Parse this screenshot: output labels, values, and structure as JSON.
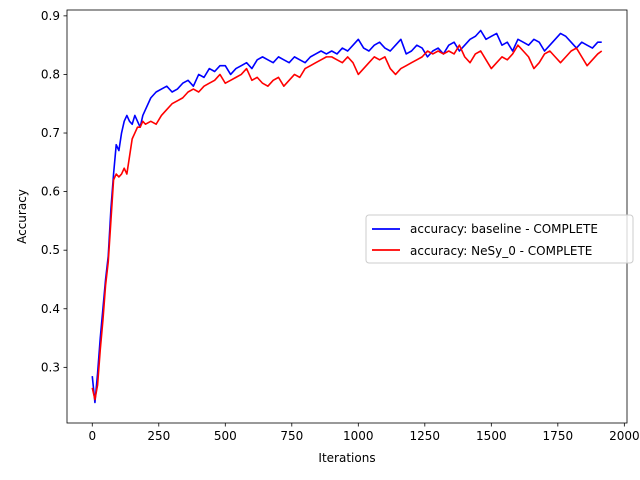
{
  "chart_data": {
    "type": "line",
    "title": "",
    "xlabel": "Iterations",
    "ylabel": "Accuracy",
    "xlim": [
      -95,
      2010
    ],
    "ylim": [
      0.205,
      0.91
    ],
    "xticks": [
      0,
      250,
      500,
      750,
      1000,
      1250,
      1500,
      1750,
      2000
    ],
    "yticks": [
      0.3,
      0.4,
      0.5,
      0.6,
      0.7,
      0.8,
      0.9
    ],
    "grid": false,
    "legend_position": "center-right",
    "series": [
      {
        "name": "accuracy: baseline - COMPLETE",
        "color": "#0000ff",
        "x": [
          0,
          10,
          20,
          30,
          40,
          50,
          60,
          70,
          80,
          90,
          100,
          110,
          120,
          130,
          140,
          150,
          160,
          170,
          180,
          190,
          200,
          220,
          240,
          260,
          280,
          300,
          320,
          340,
          360,
          380,
          400,
          420,
          440,
          460,
          480,
          500,
          520,
          540,
          560,
          580,
          600,
          620,
          640,
          660,
          680,
          700,
          720,
          740,
          760,
          780,
          800,
          820,
          840,
          860,
          880,
          900,
          920,
          940,
          960,
          980,
          1000,
          1020,
          1040,
          1060,
          1080,
          1100,
          1120,
          1140,
          1160,
          1180,
          1200,
          1220,
          1240,
          1260,
          1280,
          1300,
          1320,
          1340,
          1360,
          1380,
          1400,
          1420,
          1440,
          1460,
          1480,
          1500,
          1520,
          1540,
          1560,
          1580,
          1600,
          1620,
          1640,
          1660,
          1680,
          1700,
          1720,
          1740,
          1760,
          1780,
          1800,
          1820,
          1840,
          1860,
          1880,
          1900,
          1915
        ],
        "values": [
          0.285,
          0.24,
          0.29,
          0.35,
          0.4,
          0.45,
          0.49,
          0.57,
          0.63,
          0.68,
          0.67,
          0.7,
          0.72,
          0.73,
          0.72,
          0.715,
          0.73,
          0.72,
          0.71,
          0.73,
          0.74,
          0.76,
          0.77,
          0.775,
          0.78,
          0.77,
          0.775,
          0.785,
          0.79,
          0.78,
          0.8,
          0.795,
          0.81,
          0.805,
          0.815,
          0.815,
          0.8,
          0.81,
          0.815,
          0.82,
          0.81,
          0.825,
          0.83,
          0.825,
          0.82,
          0.83,
          0.825,
          0.82,
          0.83,
          0.825,
          0.82,
          0.83,
          0.835,
          0.84,
          0.835,
          0.84,
          0.835,
          0.845,
          0.84,
          0.85,
          0.86,
          0.845,
          0.84,
          0.85,
          0.855,
          0.845,
          0.84,
          0.85,
          0.86,
          0.835,
          0.84,
          0.85,
          0.845,
          0.83,
          0.84,
          0.845,
          0.835,
          0.85,
          0.855,
          0.84,
          0.85,
          0.86,
          0.865,
          0.875,
          0.86,
          0.865,
          0.87,
          0.85,
          0.855,
          0.84,
          0.86,
          0.855,
          0.85,
          0.86,
          0.855,
          0.84,
          0.85,
          0.86,
          0.87,
          0.865,
          0.855,
          0.845,
          0.855,
          0.85,
          0.845,
          0.855,
          0.855
        ]
      },
      {
        "name": "accuracy: NeSy_0 - COMPLETE",
        "color": "#ff0000",
        "x": [
          0,
          10,
          20,
          30,
          40,
          50,
          60,
          70,
          80,
          90,
          100,
          110,
          120,
          130,
          140,
          150,
          160,
          170,
          180,
          190,
          200,
          220,
          240,
          260,
          280,
          300,
          320,
          340,
          360,
          380,
          400,
          420,
          440,
          460,
          480,
          500,
          520,
          540,
          560,
          580,
          600,
          620,
          640,
          660,
          680,
          700,
          720,
          740,
          760,
          780,
          800,
          820,
          840,
          860,
          880,
          900,
          920,
          940,
          960,
          980,
          1000,
          1020,
          1040,
          1060,
          1080,
          1100,
          1120,
          1140,
          1160,
          1180,
          1200,
          1220,
          1240,
          1260,
          1280,
          1300,
          1320,
          1340,
          1360,
          1380,
          1400,
          1420,
          1440,
          1460,
          1480,
          1500,
          1520,
          1540,
          1560,
          1580,
          1600,
          1620,
          1640,
          1660,
          1680,
          1700,
          1720,
          1740,
          1760,
          1780,
          1800,
          1820,
          1840,
          1860,
          1880,
          1900,
          1915
        ],
        "values": [
          0.265,
          0.245,
          0.27,
          0.33,
          0.38,
          0.44,
          0.48,
          0.55,
          0.62,
          0.63,
          0.625,
          0.63,
          0.64,
          0.63,
          0.66,
          0.69,
          0.7,
          0.71,
          0.71,
          0.72,
          0.715,
          0.72,
          0.715,
          0.73,
          0.74,
          0.75,
          0.755,
          0.76,
          0.77,
          0.775,
          0.77,
          0.78,
          0.785,
          0.79,
          0.8,
          0.785,
          0.79,
          0.795,
          0.8,
          0.81,
          0.79,
          0.795,
          0.785,
          0.78,
          0.79,
          0.795,
          0.78,
          0.79,
          0.8,
          0.795,
          0.81,
          0.815,
          0.82,
          0.825,
          0.83,
          0.83,
          0.825,
          0.82,
          0.83,
          0.82,
          0.8,
          0.81,
          0.82,
          0.83,
          0.825,
          0.83,
          0.81,
          0.8,
          0.81,
          0.815,
          0.82,
          0.825,
          0.83,
          0.84,
          0.835,
          0.84,
          0.835,
          0.84,
          0.835,
          0.85,
          0.83,
          0.82,
          0.835,
          0.84,
          0.825,
          0.81,
          0.82,
          0.83,
          0.825,
          0.835,
          0.85,
          0.84,
          0.83,
          0.81,
          0.82,
          0.835,
          0.84,
          0.83,
          0.82,
          0.83,
          0.84,
          0.845,
          0.83,
          0.815,
          0.825,
          0.835,
          0.84
        ]
      }
    ]
  }
}
